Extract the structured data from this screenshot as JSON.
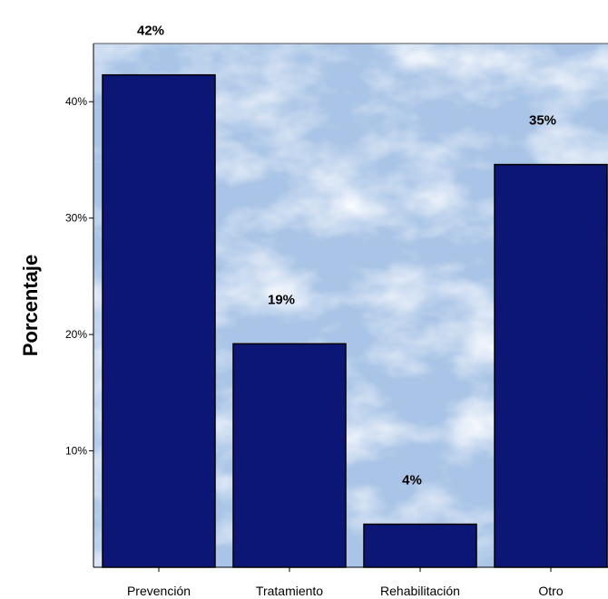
{
  "chart_data": {
    "type": "bar",
    "categories": [
      "Prevención",
      "Tratamiento",
      "Rehabilitación",
      "Otro"
    ],
    "values": [
      42.3,
      19.2,
      3.7,
      34.6
    ],
    "data_labels": [
      "42%",
      "19%",
      "4%",
      "35%"
    ],
    "ylabel": "Porcentaje",
    "yticks": [
      10,
      20,
      30,
      40
    ],
    "ytick_labels": [
      "10%",
      "20%",
      "30%",
      "40%"
    ],
    "ylim": [
      0,
      45
    ],
    "grid": false,
    "colors": {
      "bar_fill": "#0c1775",
      "bar_stroke": "#000000",
      "plot_background": "#a9c4e6",
      "cloud": "#eef4fb"
    }
  }
}
